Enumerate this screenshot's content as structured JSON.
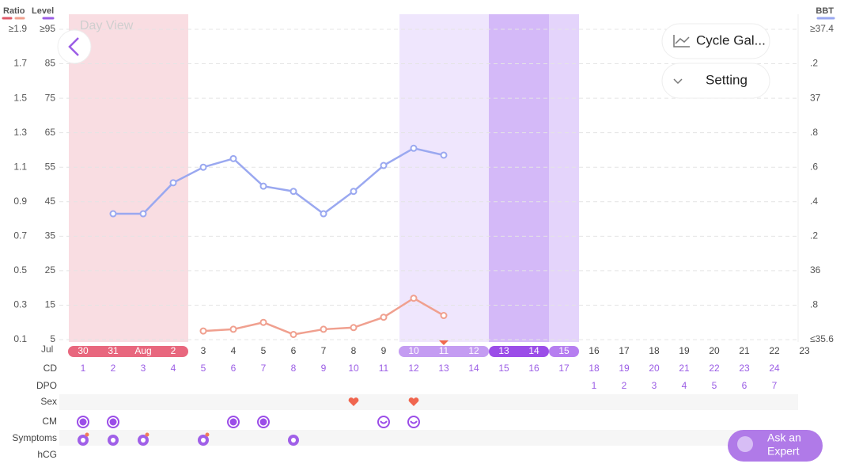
{
  "chart_data": {
    "type": "line",
    "title": "Day View",
    "ylabel": "Ratio",
    "level_label": "Level",
    "y2label": "BBT",
    "month_label": "Jul",
    "categories": [
      "30",
      "31",
      "Aug",
      "2",
      "3",
      "4",
      "5",
      "6",
      "7",
      "8",
      "9",
      "10",
      "11",
      "12",
      "13",
      "14",
      "15",
      "16",
      "17",
      "18",
      "19",
      "20",
      "21",
      "22",
      "23"
    ],
    "ylim": [
      0.1,
      1.9
    ],
    "yticks": [
      {
        "value": 1.9,
        "label": "≥1.9"
      },
      1.7,
      1.5,
      1.3,
      1.1,
      0.9,
      0.7,
      0.5,
      0.3,
      0.1
    ],
    "level_lim": [
      5,
      95
    ],
    "level_ticks": [
      {
        "value": 95,
        "label": "≥95"
      },
      85,
      75,
      65,
      55,
      45,
      35,
      25,
      15,
      5
    ],
    "y2lim": [
      35.6,
      37.4
    ],
    "y2ticks": [
      {
        "value": 37.4,
        "label": "≥37.4"
      },
      {
        "value": 37.2,
        "label": ".2"
      },
      37,
      {
        "value": 36.8,
        "label": ".8"
      },
      {
        "value": 36.6,
        "label": ".6"
      },
      {
        "value": 36.4,
        "label": ".4"
      },
      {
        "value": 36.2,
        "label": ".2"
      },
      36,
      {
        "value": 35.8,
        "label": ".8"
      },
      {
        "value": 35.6,
        "label": "≤35.6"
      }
    ],
    "grid": true,
    "series": [
      {
        "color": "#9aa8f0",
        "axis": "y2",
        "values": [
          null,
          36.33,
          36.33,
          36.51,
          36.6,
          36.65,
          36.49,
          36.46,
          36.33,
          36.46,
          36.61,
          36.71,
          36.67,
          null,
          null,
          null,
          null,
          null,
          null,
          null,
          null,
          null,
          null,
          null,
          null
        ]
      },
      {
        "color": "#f0a08f",
        "axis": "y",
        "values": [
          null,
          null,
          null,
          null,
          0.15,
          0.16,
          0.2,
          0.13,
          0.16,
          0.17,
          0.23,
          0.34,
          0.24,
          null,
          null,
          null,
          null,
          null,
          null,
          null,
          null,
          null,
          null,
          null,
          null
        ]
      }
    ],
    "rows": [
      "CD",
      "DPO",
      "Sex",
      "CM",
      "Symptoms",
      "hCG"
    ],
    "cd": [
      1,
      2,
      3,
      4,
      5,
      6,
      7,
      8,
      9,
      10,
      11,
      12,
      13,
      14,
      15,
      16,
      17,
      18,
      19,
      20,
      21,
      22,
      23,
      24,
      null
    ],
    "dpo": [
      null,
      null,
      null,
      null,
      null,
      null,
      null,
      null,
      null,
      null,
      null,
      null,
      null,
      null,
      null,
      null,
      null,
      1,
      2,
      3,
      4,
      5,
      6,
      7,
      null
    ]
  },
  "buttons": {
    "gallery": "Cycle Gal...",
    "setting": "Setting",
    "expert": [
      "Ask an",
      "Expert"
    ]
  }
}
